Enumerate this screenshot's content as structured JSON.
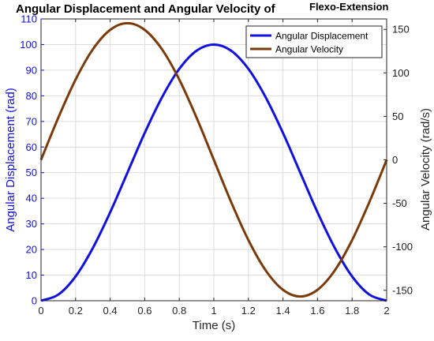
{
  "chart_data": {
    "type": "line",
    "title": "Angular Displacement and Angular Velocity of",
    "title_suffix": "Flexo-Extension",
    "xlabel": "Time (s)",
    "xlim": [
      0,
      2
    ],
    "x_ticks": [
      "0",
      "0.2",
      "0.4",
      "0.6",
      "0.8",
      "1",
      "1.2",
      "1.4",
      "1.6",
      "1.8",
      "2"
    ],
    "y_left": {
      "label": "Angular Displacement (rad)",
      "lim": [
        0,
        110
      ],
      "ticks": [
        "0",
        "10",
        "20",
        "30",
        "40",
        "50",
        "60",
        "70",
        "80",
        "90",
        "100",
        "110"
      ],
      "color": "#1010e0"
    },
    "y_right": {
      "label": "Angular Velocity (rad/s)",
      "lim": [
        -162,
        162
      ],
      "ticks": [
        "-150",
        "-100",
        "-50",
        "0",
        "50",
        "100",
        "150"
      ],
      "color": "#1a1a1a"
    },
    "grid": true,
    "legend_position": "top-right",
    "series": [
      {
        "name": "Angular Displacement",
        "axis": "left",
        "color": "#1010e0",
        "x": [
          0,
          0.1,
          0.2,
          0.3,
          0.4,
          0.5,
          0.6,
          0.7,
          0.8,
          0.9,
          1.0,
          1.1,
          1.2,
          1.3,
          1.4,
          1.5,
          1.6,
          1.7,
          1.8,
          1.9,
          2.0
        ],
        "y": [
          0,
          2.4,
          9.5,
          20.6,
          34.5,
          50.0,
          65.5,
          79.4,
          90.5,
          97.6,
          100.0,
          97.6,
          90.5,
          79.4,
          65.5,
          50.0,
          34.5,
          20.6,
          9.5,
          2.4,
          0
        ]
      },
      {
        "name": "Angular Velocity",
        "axis": "right",
        "color": "#7a3a0a",
        "x": [
          0,
          0.1,
          0.2,
          0.3,
          0.4,
          0.5,
          0.6,
          0.7,
          0.8,
          0.9,
          1.0,
          1.1,
          1.2,
          1.3,
          1.4,
          1.5,
          1.6,
          1.7,
          1.8,
          1.9,
          2.0
        ],
        "y": [
          0,
          48.5,
          92.3,
          127.1,
          149.4,
          157.1,
          149.4,
          127.1,
          92.3,
          48.5,
          0,
          -48.5,
          -92.3,
          -127.1,
          -149.4,
          -157.1,
          -149.4,
          -127.1,
          -92.3,
          -48.5,
          0
        ]
      }
    ]
  }
}
